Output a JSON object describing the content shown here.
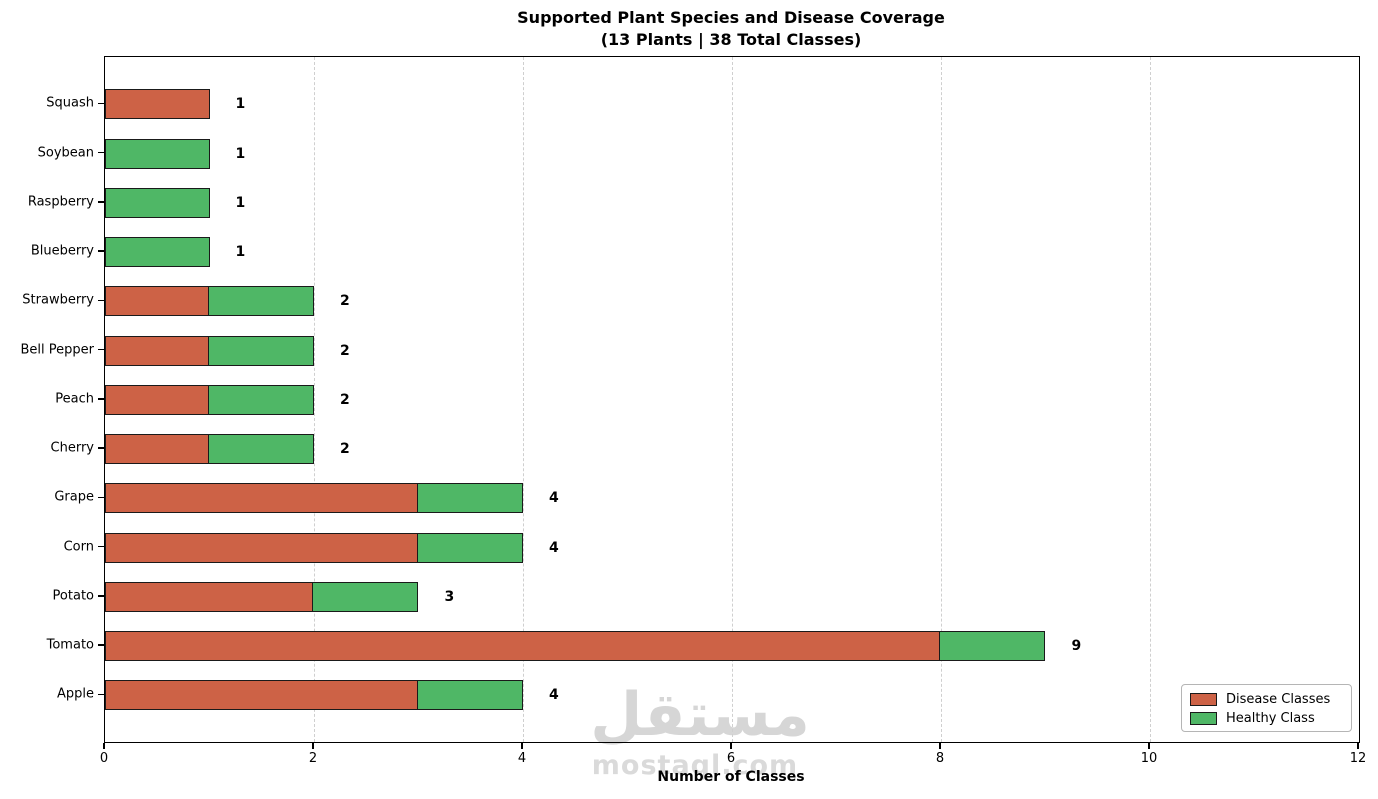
{
  "chart_data": {
    "type": "bar",
    "orientation": "horizontal",
    "stacked": true,
    "title": "Supported Plant Species and Disease Coverage",
    "subtitle": "(13 Plants | 38 Total Classes)",
    "xlabel": "Number of Classes",
    "xlim": [
      0,
      12
    ],
    "xticks": [
      0,
      2,
      4,
      6,
      8,
      10,
      12
    ],
    "grid": "vertical-dashed",
    "legend_position": "lower-right",
    "categories": [
      "Squash",
      "Soybean",
      "Raspberry",
      "Blueberry",
      "Strawberry",
      "Bell Pepper",
      "Peach",
      "Cherry",
      "Grape",
      "Corn",
      "Potato",
      "Tomato",
      "Apple"
    ],
    "series": [
      {
        "name": "Disease Classes",
        "color": "#cd6246",
        "values": [
          1,
          0,
          0,
          0,
          1,
          1,
          1,
          1,
          3,
          3,
          2,
          8,
          3
        ]
      },
      {
        "name": "Healthy Class",
        "color": "#4fb766",
        "values": [
          0,
          1,
          1,
          1,
          1,
          1,
          1,
          1,
          1,
          1,
          1,
          1,
          1
        ]
      }
    ],
    "totals": [
      1,
      1,
      1,
      1,
      2,
      2,
      2,
      2,
      4,
      4,
      3,
      9,
      4
    ]
  },
  "colors": {
    "bar_edge": "#1a1a1a",
    "grid": "#cfcfcf",
    "legend_border": "#b5b5b5"
  },
  "watermark": {
    "arabic": "مستقل",
    "latin": "mostaql.com"
  }
}
